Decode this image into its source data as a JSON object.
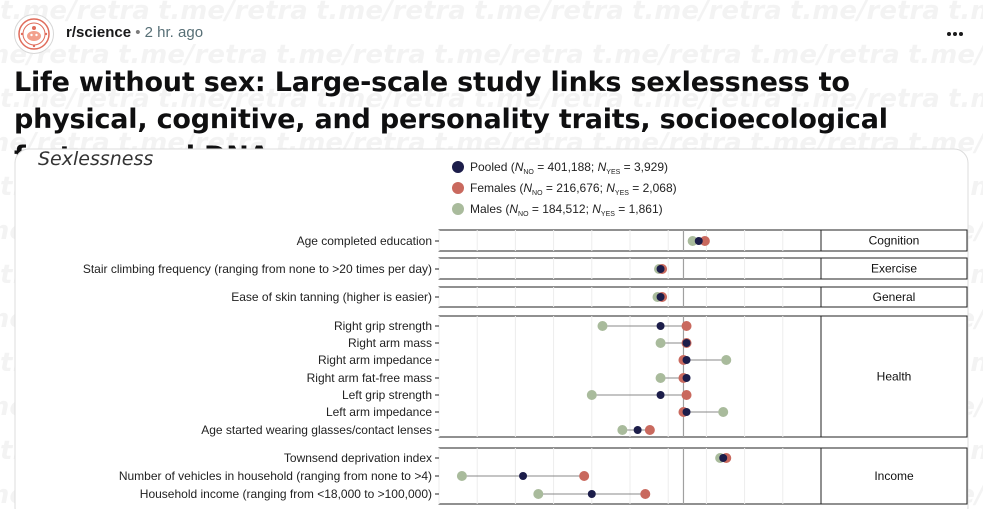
{
  "post": {
    "subreddit": "r/science",
    "separator": "•",
    "time": "2 hr. ago",
    "more_icon": "ellipsis-icon",
    "title": "Life without sex: Large-scale study links sexlessness to physical, cognitive, and personality traits, socioecological factors, and DNA"
  },
  "watermark": {
    "text": "t.me/retra"
  },
  "chart_data": {
    "type": "scatter",
    "title": "Sexlessness",
    "legend_position": "top",
    "series": [
      {
        "name": "Pooled",
        "n_no": "401,188",
        "n_yes": "3,929",
        "color": "#1c1d4a"
      },
      {
        "name": "Females",
        "n_no": "216,676",
        "n_yes": "2,068",
        "color": "#c9695e"
      },
      {
        "name": "Males",
        "n_no": "184,512",
        "n_yes": "1,861",
        "color": "#a9bb9c"
      }
    ],
    "groups": [
      {
        "label": "Cognition",
        "rows": [
          {
            "label": "Age completed education",
            "pooled": 0.2,
            "females": 0.24,
            "males": 0.16
          }
        ]
      },
      {
        "label": "Exercise",
        "rows": [
          {
            "label": "Stair climbing frequency (ranging from none to >20 times per day)",
            "pooled": -0.05,
            "females": -0.04,
            "males": -0.06
          }
        ]
      },
      {
        "label": "General",
        "rows": [
          {
            "label": "Ease of skin tanning (higher is easier)",
            "pooled": -0.05,
            "females": -0.04,
            "males": -0.07
          }
        ]
      },
      {
        "label": "Health",
        "rows": [
          {
            "label": "Right grip strength",
            "pooled": -0.05,
            "females": 0.12,
            "males": -0.43
          },
          {
            "label": "Right arm mass",
            "pooled": 0.12,
            "females": 0.12,
            "males": -0.05
          },
          {
            "label": "Right arm impedance",
            "pooled": 0.12,
            "females": 0.1,
            "males": 0.38
          },
          {
            "label": "Right arm fat-free mass",
            "pooled": 0.12,
            "females": 0.1,
            "males": -0.05
          },
          {
            "label": "Left grip strength",
            "pooled": -0.05,
            "females": 0.12,
            "males": -0.5
          },
          {
            "label": "Left arm impedance",
            "pooled": 0.12,
            "females": 0.1,
            "males": 0.36
          },
          {
            "label": "Age started wearing glasses/contact lenses",
            "pooled": -0.2,
            "females": -0.12,
            "males": -0.3
          }
        ]
      },
      {
        "label": "Income",
        "rows": [
          {
            "label": "Townsend deprivation index",
            "pooled": 0.36,
            "females": 0.38,
            "males": 0.34
          },
          {
            "label": "Number of vehicles in household (ranging from none to >4)",
            "pooled": -0.95,
            "females": -0.55,
            "males": -1.35
          },
          {
            "label": "Household income (ranging from <18,000 to >100,000)",
            "pooled": -0.5,
            "females": -0.15,
            "males": -0.85
          }
        ]
      }
    ],
    "xlim": [
      -1.5,
      1.0
    ],
    "vertical_lines": [
      0.1
    ],
    "grid": true
  }
}
